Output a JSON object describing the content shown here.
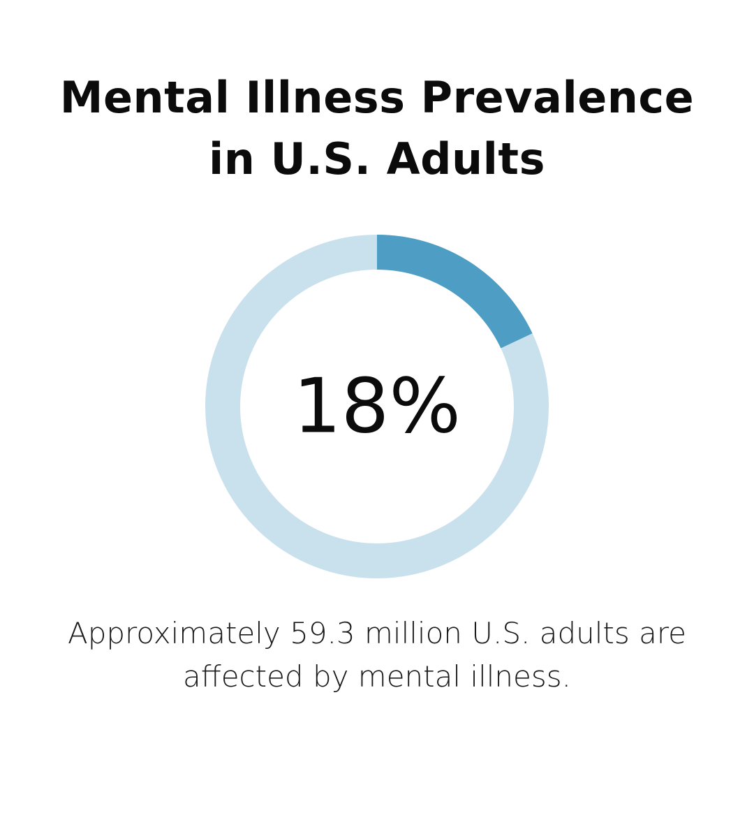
{
  "chart_data": {
    "type": "pie",
    "variant": "donut",
    "title_lines": [
      "Mental Illness Prevalence",
      "in U.S. Adults"
    ],
    "center_label": "18%",
    "value": 18,
    "max": 100,
    "caption_lines": [
      "Approximately 59.3 million U.S. adults are",
      "affected by mental illness."
    ],
    "colors": {
      "filled": "#4E9DC4",
      "track": "#C9E0ED"
    }
  }
}
